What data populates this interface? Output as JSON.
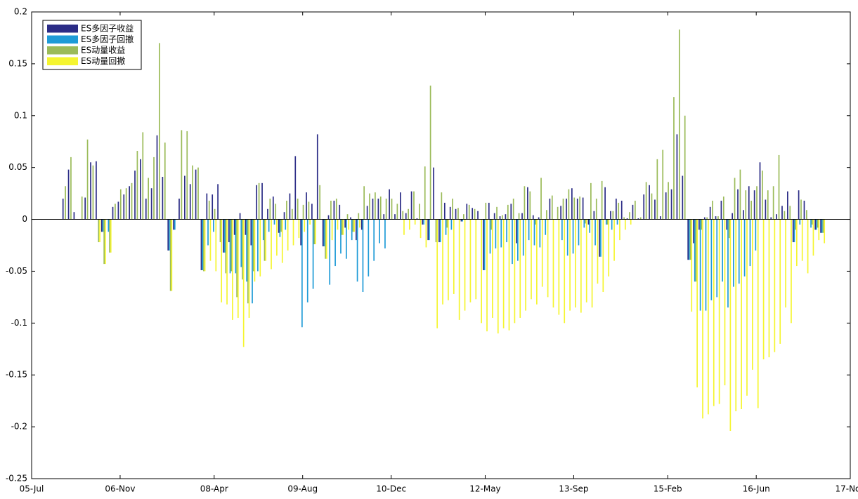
{
  "chart_data": {
    "type": "bar",
    "x": [
      "06-Jan",
      "06-Feb",
      "06-Mar",
      "06-Apr",
      "06-May",
      "06-Jun",
      "06-Jul",
      "06-Aug",
      "06-Sep",
      "06-Oct",
      "06-Nov",
      "06-Dec",
      "07-Jan",
      "07-Feb",
      "07-Mar",
      "07-Apr",
      "07-May",
      "07-Jun",
      "07-Jul",
      "07-Aug",
      "07-Sep",
      "07-Oct",
      "07-Nov",
      "07-Dec",
      "08-Jan",
      "08-Feb",
      "08-Mar",
      "08-Apr",
      "08-May",
      "08-Jun",
      "08-Jul",
      "08-Aug",
      "08-Sep",
      "08-Oct",
      "08-Nov",
      "08-Dec",
      "09-Jan",
      "09-Feb",
      "09-Mar",
      "09-Apr",
      "09-May",
      "09-Jun",
      "09-Jul",
      "09-Aug",
      "09-Sep",
      "09-Oct",
      "09-Nov",
      "09-Dec",
      "10-Jan",
      "10-Feb",
      "10-Mar",
      "10-Apr",
      "10-May",
      "10-Jun",
      "10-Jul",
      "10-Aug",
      "10-Sep",
      "10-Oct",
      "10-Nov",
      "10-Dec",
      "11-Jan",
      "11-Feb",
      "11-Mar",
      "11-Apr",
      "11-May",
      "11-Jun",
      "11-Jul",
      "11-Aug",
      "11-Sep",
      "11-Oct",
      "11-Nov",
      "11-Dec",
      "12-Jan",
      "12-Feb",
      "12-Mar",
      "12-Apr",
      "12-May",
      "12-Jun",
      "12-Jul",
      "12-Aug",
      "12-Sep",
      "12-Oct",
      "12-Nov",
      "12-Dec",
      "13-Jan",
      "13-Feb",
      "13-Mar",
      "13-Apr",
      "13-May",
      "13-Jun",
      "13-Jul",
      "13-Aug",
      "13-Sep",
      "13-Oct",
      "13-Nov",
      "13-Dec",
      "14-Jan",
      "14-Feb",
      "14-Mar",
      "14-Apr",
      "14-May",
      "14-Jun",
      "14-Jul",
      "14-Aug",
      "14-Sep",
      "14-Oct",
      "14-Nov",
      "14-Dec",
      "15-Jan",
      "15-Feb",
      "15-Mar",
      "15-Apr",
      "15-May",
      "15-Jun",
      "15-Jul",
      "15-Aug",
      "15-Sep",
      "15-Oct",
      "15-Nov",
      "15-Dec",
      "16-Jan",
      "16-Feb",
      "16-Mar",
      "16-Apr",
      "16-May",
      "16-Jun",
      "16-Jul",
      "16-Aug",
      "16-Sep",
      "16-Oct",
      "16-Nov",
      "16-Dec",
      "17-Jan",
      "17-Feb",
      "17-Mar",
      "17-Apr",
      "17-May",
      "17-Jun"
    ],
    "series": [
      {
        "name": "ES多因子收益",
        "color": "#2b2c86",
        "values": [
          0.02,
          0.048,
          0.007,
          0,
          0.021,
          0.055,
          0.056,
          -0.012,
          0,
          0.012,
          0.017,
          0.024,
          0.032,
          0.047,
          0.058,
          0.02,
          0.03,
          0.081,
          0.041,
          -0.03,
          -0.01,
          0.02,
          0.042,
          0.034,
          0.048,
          -0.049,
          0.025,
          0.024,
          0.034,
          -0.032,
          -0.022,
          -0.015,
          0.006,
          -0.015,
          -0.025,
          0.033,
          0.035,
          0.01,
          0.022,
          -0.013,
          0.007,
          0.025,
          0.061,
          -0.025,
          0.026,
          0.015,
          0.082,
          -0.026,
          0.004,
          0.018,
          0.014,
          -0.008,
          0.002,
          -0.02,
          -0.01,
          0.013,
          0.02,
          0.02,
          0.005,
          0.029,
          0.005,
          0.026,
          0.006,
          0.027,
          0.001,
          -0.005,
          -0.02,
          0.05,
          -0.022,
          0.016,
          0.012,
          0.01,
          -0.002,
          0.015,
          0.011,
          0.008,
          -0.049,
          0.016,
          0.006,
          0.003,
          0.005,
          0.015,
          -0.023,
          0.006,
          0.031,
          0.004,
          0.002,
          0,
          0.02,
          0,
          0.013,
          0.02,
          0.03,
          0.02,
          0.021,
          -0.005,
          0.008,
          -0.036,
          0.031,
          0.008,
          0.02,
          0.018,
          0.001,
          0.014,
          0.001,
          0.024,
          0.033,
          0.019,
          0.003,
          0.026,
          0.029,
          0.082,
          0.042,
          -0.039,
          -0.023,
          -0.01,
          0.002,
          0.012,
          0.003,
          0.018,
          -0.01,
          0.006,
          0.029,
          0.009,
          0.032,
          0.028,
          0.055,
          0.019,
          0.002,
          0.005,
          0.013,
          0.027,
          -0.022,
          0.028,
          0.018,
          0,
          -0.01,
          -0.013
        ]
      },
      {
        "name": "ES多因子回撤",
        "color": "#1e9bd7",
        "values": [
          0,
          0,
          0,
          0,
          0,
          0,
          0,
          -0.012,
          -0.012,
          0,
          0,
          0,
          0,
          0,
          0,
          0,
          0,
          0,
          0,
          -0.03,
          -0.01,
          0,
          0,
          0,
          0,
          -0.049,
          -0.025,
          -0.012,
          0,
          -0.032,
          -0.052,
          -0.052,
          -0.046,
          -0.06,
          -0.081,
          -0.05,
          -0.02,
          -0.012,
          -0.005,
          -0.017,
          -0.01,
          0,
          0,
          -0.104,
          -0.08,
          -0.067,
          0,
          -0.026,
          -0.063,
          -0.045,
          -0.033,
          -0.038,
          -0.02,
          -0.06,
          -0.07,
          -0.055,
          -0.04,
          -0.023,
          -0.028,
          0,
          0,
          0,
          0,
          0,
          0,
          -0.005,
          -0.02,
          0,
          -0.022,
          -0.015,
          -0.01,
          0,
          -0.002,
          0,
          0,
          0,
          -0.049,
          -0.033,
          -0.028,
          -0.027,
          -0.022,
          -0.043,
          -0.04,
          -0.035,
          -0.02,
          -0.025,
          -0.027,
          -0.015,
          0,
          0,
          -0.02,
          -0.035,
          -0.033,
          -0.025,
          -0.008,
          -0.013,
          -0.025,
          -0.036,
          -0.005,
          -0.01,
          -0.005,
          0,
          0,
          0,
          0,
          0,
          0,
          0,
          0,
          0,
          0,
          0,
          0,
          -0.039,
          -0.06,
          -0.088,
          -0.088,
          -0.078,
          -0.075,
          -0.06,
          -0.085,
          -0.065,
          -0.062,
          -0.055,
          -0.045,
          -0.03,
          0,
          0,
          0,
          0,
          0,
          0,
          -0.022,
          -0.005,
          0,
          -0.008,
          -0.01,
          -0.013
        ]
      },
      {
        "name": "ES动量收益",
        "color": "#9bbb59",
        "values": [
          0.032,
          0.06,
          0,
          0.022,
          0.077,
          0.052,
          -0.022,
          -0.043,
          -0.032,
          0.015,
          0.029,
          0.03,
          0.035,
          0.066,
          0.084,
          0.04,
          0.06,
          0.17,
          0.074,
          -0.069,
          0,
          0.086,
          0.085,
          0.052,
          0.05,
          -0.05,
          0.018,
          0.01,
          -0.022,
          -0.052,
          -0.05,
          -0.075,
          -0.058,
          -0.081,
          -0.05,
          0.035,
          -0.04,
          0.02,
          0.015,
          -0.012,
          0.018,
          0.01,
          0.02,
          0.014,
          0.017,
          -0.024,
          0.033,
          -0.038,
          0.018,
          0.02,
          -0.015,
          0.005,
          -0.012,
          0.006,
          0.032,
          0.025,
          0.026,
          0.022,
          0.02,
          0.02,
          0.015,
          0.008,
          0.01,
          0.027,
          0.015,
          0.051,
          0.129,
          -0.022,
          0.026,
          -0.008,
          0.02,
          0.011,
          0.005,
          0.014,
          0.01,
          0,
          0.016,
          -0.01,
          0.012,
          0.004,
          0.014,
          0.02,
          0.006,
          0.032,
          0.027,
          -0.005,
          0.04,
          0.009,
          0.023,
          0.012,
          0.02,
          0.029,
          0.021,
          0.022,
          -0.004,
          0.035,
          0.02,
          0.037,
          -0.005,
          0.008,
          0.016,
          0.002,
          0.007,
          0.018,
          0.002,
          0.036,
          0.025,
          0.058,
          0.067,
          0.036,
          0.118,
          0.183,
          0.1,
          -0.039,
          -0.06,
          -0.01,
          0.002,
          0.018,
          0.003,
          0.022,
          -0.018,
          0.04,
          0.048,
          0.028,
          0.018,
          0.032,
          0.047,
          0.028,
          0.032,
          0.062,
          0.008,
          0.013,
          -0.01,
          0.019,
          0.009,
          -0.005,
          -0.008,
          -0.013
        ]
      },
      {
        "name": "ES动量回撤",
        "color": "#f5f530",
        "values": [
          0,
          0,
          0,
          0,
          0,
          0,
          -0.022,
          -0.043,
          -0.032,
          0,
          0,
          0,
          0,
          0,
          0,
          0,
          0,
          0,
          0,
          -0.069,
          0,
          0,
          0,
          0,
          0,
          -0.05,
          -0.04,
          -0.05,
          -0.08,
          -0.082,
          -0.097,
          -0.095,
          -0.123,
          -0.095,
          -0.06,
          -0.055,
          -0.04,
          -0.048,
          -0.035,
          -0.042,
          -0.03,
          -0.025,
          -0.018,
          -0.012,
          -0.005,
          -0.024,
          0,
          -0.038,
          -0.02,
          -0.01,
          -0.015,
          -0.01,
          -0.012,
          -0.008,
          0,
          0,
          0,
          0,
          0,
          0,
          0,
          -0.015,
          -0.01,
          -0.005,
          -0.018,
          -0.027,
          0,
          -0.105,
          -0.082,
          -0.078,
          -0.072,
          -0.097,
          -0.088,
          -0.08,
          -0.077,
          -0.1,
          -0.108,
          -0.095,
          -0.11,
          -0.105,
          -0.107,
          -0.1,
          -0.095,
          -0.088,
          -0.077,
          -0.082,
          -0.065,
          -0.075,
          -0.085,
          -0.092,
          -0.1,
          -0.088,
          -0.085,
          -0.09,
          -0.08,
          -0.085,
          -0.062,
          -0.07,
          -0.055,
          -0.04,
          -0.02,
          -0.01,
          -0.005,
          0,
          0,
          0,
          0,
          0,
          0,
          0,
          0,
          0,
          0,
          -0.089,
          -0.162,
          -0.192,
          -0.188,
          -0.18,
          -0.178,
          -0.16,
          -0.204,
          -0.185,
          -0.183,
          -0.17,
          -0.145,
          -0.182,
          -0.135,
          -0.133,
          -0.128,
          -0.12,
          -0.085,
          -0.1,
          -0.045,
          -0.04,
          -0.052,
          -0.035,
          -0.02,
          -0.023
        ]
      }
    ],
    "xlim": [
      "05-Jul",
      "17-Nov"
    ],
    "xticks": [
      "05-Jul",
      "06-Nov",
      "08-Apr",
      "09-Aug",
      "10-Dec",
      "12-May",
      "13-Sep",
      "15-Feb",
      "16-Jun",
      "17-Nov"
    ],
    "ylim": [
      -0.25,
      0.2
    ],
    "yticks": [
      -0.25,
      -0.2,
      -0.15,
      -0.1,
      -0.05,
      0,
      0.05,
      0.1,
      0.15,
      0.2
    ],
    "legend": "upper left"
  }
}
